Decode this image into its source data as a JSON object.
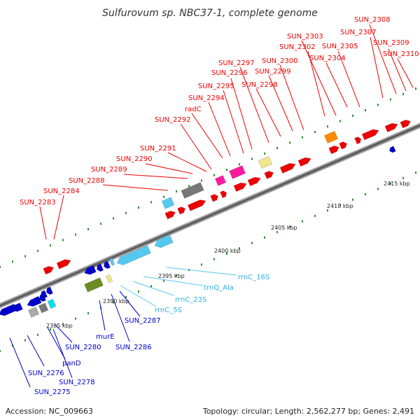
{
  "title": "Sulfurovum sp. NBC37-1, complete genome",
  "accession": "Accession: NC_009663",
  "topology": "Topology: circular; Length: 2,562,277 bp; Genes: 2,491",
  "scale_labels": [
    "2385 kbp",
    "2390 kbp",
    "2395 kbp",
    "2400 kbp",
    "2405 kbp",
    "2410 kbp",
    "2415 kbp"
  ],
  "top_labels": [
    "SUN_2283",
    "SUN_2284",
    "SUN_2288",
    "SUN_2289",
    "SUN_2290",
    "SUN_2291",
    "SUN_2292",
    "radC",
    "SUN_2294",
    "SUN_2295",
    "SUN_2296",
    "SUN_2297",
    "SUN_2298",
    "SUN_2299",
    "SUN_2300",
    "SUN_2302",
    "SUN_2303",
    "SUN_2304",
    "SUN_2305",
    "SUN_2307",
    "SUN_2308",
    "SUN_2309",
    "SUN_2310"
  ],
  "bottom_labels": [
    "SUN_2275",
    "SUN_2276",
    "SUN_2278",
    "panD",
    "SUN_2280",
    "murE",
    "SUN_2286",
    "SUN_2287",
    "rrnC_5S",
    "rrnC_23S",
    "trnQ_Ala",
    "rrnC_16S"
  ],
  "colors": {
    "forward": "#ee0000",
    "reverse": "#0000cc",
    "rrna": "#55c8f0",
    "pink": "#ff1aa0",
    "orange": "#ff8c00",
    "olive": "#6b8c21",
    "grey": "#777777",
    "yellow": "#f0e68c",
    "cyan": "#00e0f0",
    "backbone": "#888888"
  }
}
